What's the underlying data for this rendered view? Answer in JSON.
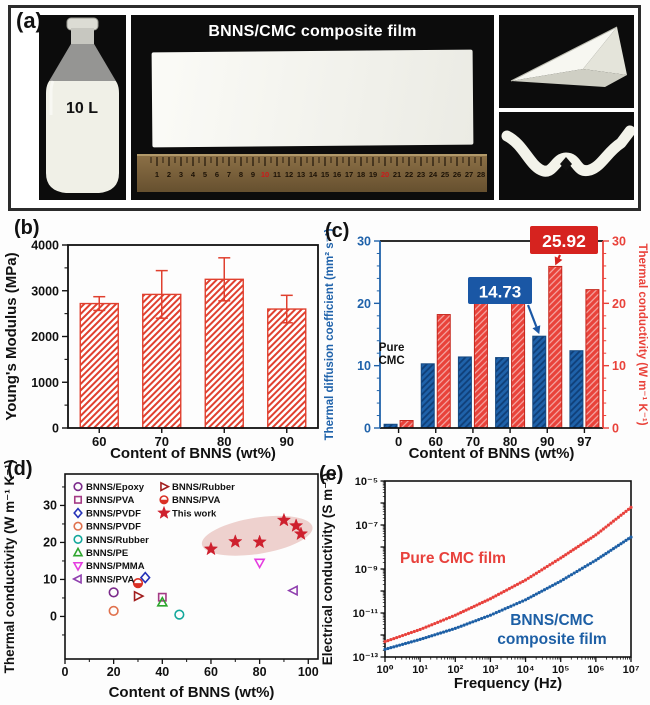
{
  "figure": {
    "panel_labels": {
      "a": "(a)",
      "b": "(b)",
      "c": "(c)",
      "d": "(d)",
      "e": "(e)"
    }
  },
  "panel_a": {
    "caption": "BNNS/CMC composite film",
    "bottle_label": "10 L",
    "ruler": {
      "numbers": [
        1,
        2,
        3,
        4,
        5,
        6,
        7,
        8,
        9,
        10,
        11,
        12,
        13,
        14,
        15,
        16,
        17,
        18,
        19,
        20,
        21,
        22,
        23,
        24,
        25,
        26,
        27,
        28
      ],
      "red_numbers": [
        10,
        20
      ]
    }
  },
  "chart_data": [
    {
      "id": "b",
      "type": "bar",
      "xlabel": "Content of BNNS (wt%)",
      "ylabel": "Young's Modulus (MPa)",
      "categories": [
        "60",
        "70",
        "80",
        "90"
      ],
      "values": [
        2720,
        2920,
        3250,
        2600
      ],
      "errors": [
        150,
        520,
        470,
        300
      ],
      "ylim": [
        0,
        4000
      ],
      "yticks": [
        0,
        1000,
        2000,
        3000,
        4000
      ],
      "bar_color": "#e0402f",
      "grid": false
    },
    {
      "id": "c",
      "type": "bar",
      "xlabel": "Content of BNNS (wt%)",
      "ylabel_left": "Thermal diffusion coefficient (mm² s⁻¹)",
      "ylabel_right": "Thermal conductivity (W m⁻¹ K⁻¹)",
      "categories": [
        "0",
        "60",
        "70",
        "80",
        "90",
        "97"
      ],
      "series": [
        {
          "name": "Thermal diffusion coefficient",
          "axis": "left",
          "color": "#1f62aa",
          "values": [
            0.6,
            10.3,
            11.4,
            11.3,
            14.73,
            12.4
          ]
        },
        {
          "name": "Thermal conductivity",
          "axis": "right",
          "color": "#e9423a",
          "values": [
            1.2,
            18.2,
            20.2,
            20.0,
            25.92,
            22.2
          ]
        }
      ],
      "ylim": [
        0,
        30
      ],
      "yticks": [
        0,
        10,
        20,
        30
      ],
      "annotations": {
        "red_callout": {
          "text": "25.92",
          "box_color": "#d6231f",
          "category": "90"
        },
        "blue_callout": {
          "text": "14.73",
          "box_color": "#1a57a5",
          "category": "90"
        },
        "pure_cmc": {
          "line1": "Pure",
          "line2": "CMC",
          "category": "0"
        }
      }
    },
    {
      "id": "d",
      "type": "scatter",
      "xlabel": "Content of BNNS (wt%)",
      "ylabel": "Thermal conductivity (W m⁻¹ K⁻¹)",
      "xlim": [
        0,
        104
      ],
      "xticks": [
        0,
        20,
        40,
        60,
        80,
        100
      ],
      "ylim": [
        -11.5,
        38.5
      ],
      "yticks": [
        0,
        10,
        20,
        30
      ],
      "series": [
        {
          "name": "BNNS/Epoxy",
          "marker": "circle",
          "fill": "open",
          "color": "#7b2a8b",
          "points": [
            [
              20,
              6.5
            ]
          ]
        },
        {
          "name": "BNNS/PVA",
          "marker": "square",
          "fill": "open",
          "color": "#a43a85",
          "points": [
            [
              40,
              5.2
            ]
          ]
        },
        {
          "name": "BNNS/PVDF",
          "marker": "diamond",
          "fill": "open",
          "color": "#2431b8",
          "points": [
            [
              33,
              10.5
            ]
          ]
        },
        {
          "name": "BNNS/PVDF",
          "marker": "circle",
          "fill": "open",
          "color": "#e0714d",
          "points": [
            [
              20,
              1.5
            ]
          ]
        },
        {
          "name": "BNNS/Rubber",
          "marker": "circle",
          "fill": "open",
          "color": "#12a79b",
          "points": [
            [
              47,
              0.5
            ]
          ]
        },
        {
          "name": "BNNS/PE",
          "marker": "triangle-up",
          "fill": "open",
          "color": "#2ea52e",
          "points": [
            [
              40,
              3.8
            ]
          ]
        },
        {
          "name": "BNNS/PMMA",
          "marker": "triangle-down",
          "fill": "open",
          "color": "#e53de0",
          "points": [
            [
              80,
              14.5
            ]
          ]
        },
        {
          "name": "BNNS/PVA",
          "marker": "triangle-left",
          "fill": "open",
          "color": "#8f3fae",
          "points": [
            [
              94,
              7
            ]
          ]
        },
        {
          "name": "BNNS/Rubber",
          "marker": "triangle-right",
          "fill": "open",
          "color": "#a11d1d",
          "points": [
            [
              30,
              5.5
            ]
          ]
        },
        {
          "name": "BNNS/PVA",
          "marker": "half-circle",
          "fill": "filled",
          "color": "#da3025",
          "points": [
            [
              30,
              9
            ]
          ]
        },
        {
          "name": "This work",
          "marker": "star",
          "fill": "filled",
          "color": "#ce202e",
          "points": [
            [
              60,
              18.2
            ],
            [
              70,
              20.2
            ],
            [
              80,
              20.1
            ],
            [
              90,
              26
            ],
            [
              95,
              24.5
            ],
            [
              97,
              22.3
            ]
          ]
        }
      ],
      "legend_split": 8,
      "highlight": {
        "cx": 79,
        "cy": 21.8,
        "rx": 23,
        "ry": 4.9,
        "angle": -9,
        "color": "#d9938c",
        "opacity": 0.42
      }
    },
    {
      "id": "e",
      "type": "line",
      "xlabel": "Frequency (Hz)",
      "ylabel": "Electrical conductivity (S m⁻¹)",
      "xscale": "log",
      "yscale": "log",
      "xlog_range": [
        0,
        7
      ],
      "ylog_range": [
        -13,
        -5
      ],
      "xtick_labels": [
        "10⁰",
        "10¹",
        "10²",
        "10³",
        "10⁴",
        "10⁵",
        "10⁶",
        "10⁷"
      ],
      "ytick_labels": [
        "10⁻¹³",
        "10⁻¹¹",
        "10⁻⁹",
        "10⁻⁷",
        "10⁻⁵"
      ],
      "series": [
        {
          "name": "Pure CMC film",
          "color": "#e8413c",
          "log_points": [
            [
              0,
              -12.3
            ],
            [
              1,
              -11.75
            ],
            [
              2,
              -11.1
            ],
            [
              3,
              -10.35
            ],
            [
              4,
              -9.5
            ],
            [
              5,
              -8.5
            ],
            [
              6,
              -7.45
            ],
            [
              7,
              -6.2
            ]
          ]
        },
        {
          "name": "BNNS/CMC composite film",
          "color": "#1d5fa5",
          "log_points": [
            [
              0,
              -12.65
            ],
            [
              1,
              -12.2
            ],
            [
              2,
              -11.7
            ],
            [
              3,
              -11.1
            ],
            [
              4,
              -10.4
            ],
            [
              5,
              -9.55
            ],
            [
              6,
              -8.6
            ],
            [
              7,
              -7.55
            ]
          ]
        }
      ],
      "labels": [
        {
          "text": "Pure CMC film",
          "color": "#e8413c"
        },
        {
          "text": "BNNS/CMC",
          "color": "#1d5fa5"
        },
        {
          "text": "composite film",
          "color": "#1d5fa5"
        }
      ]
    }
  ]
}
